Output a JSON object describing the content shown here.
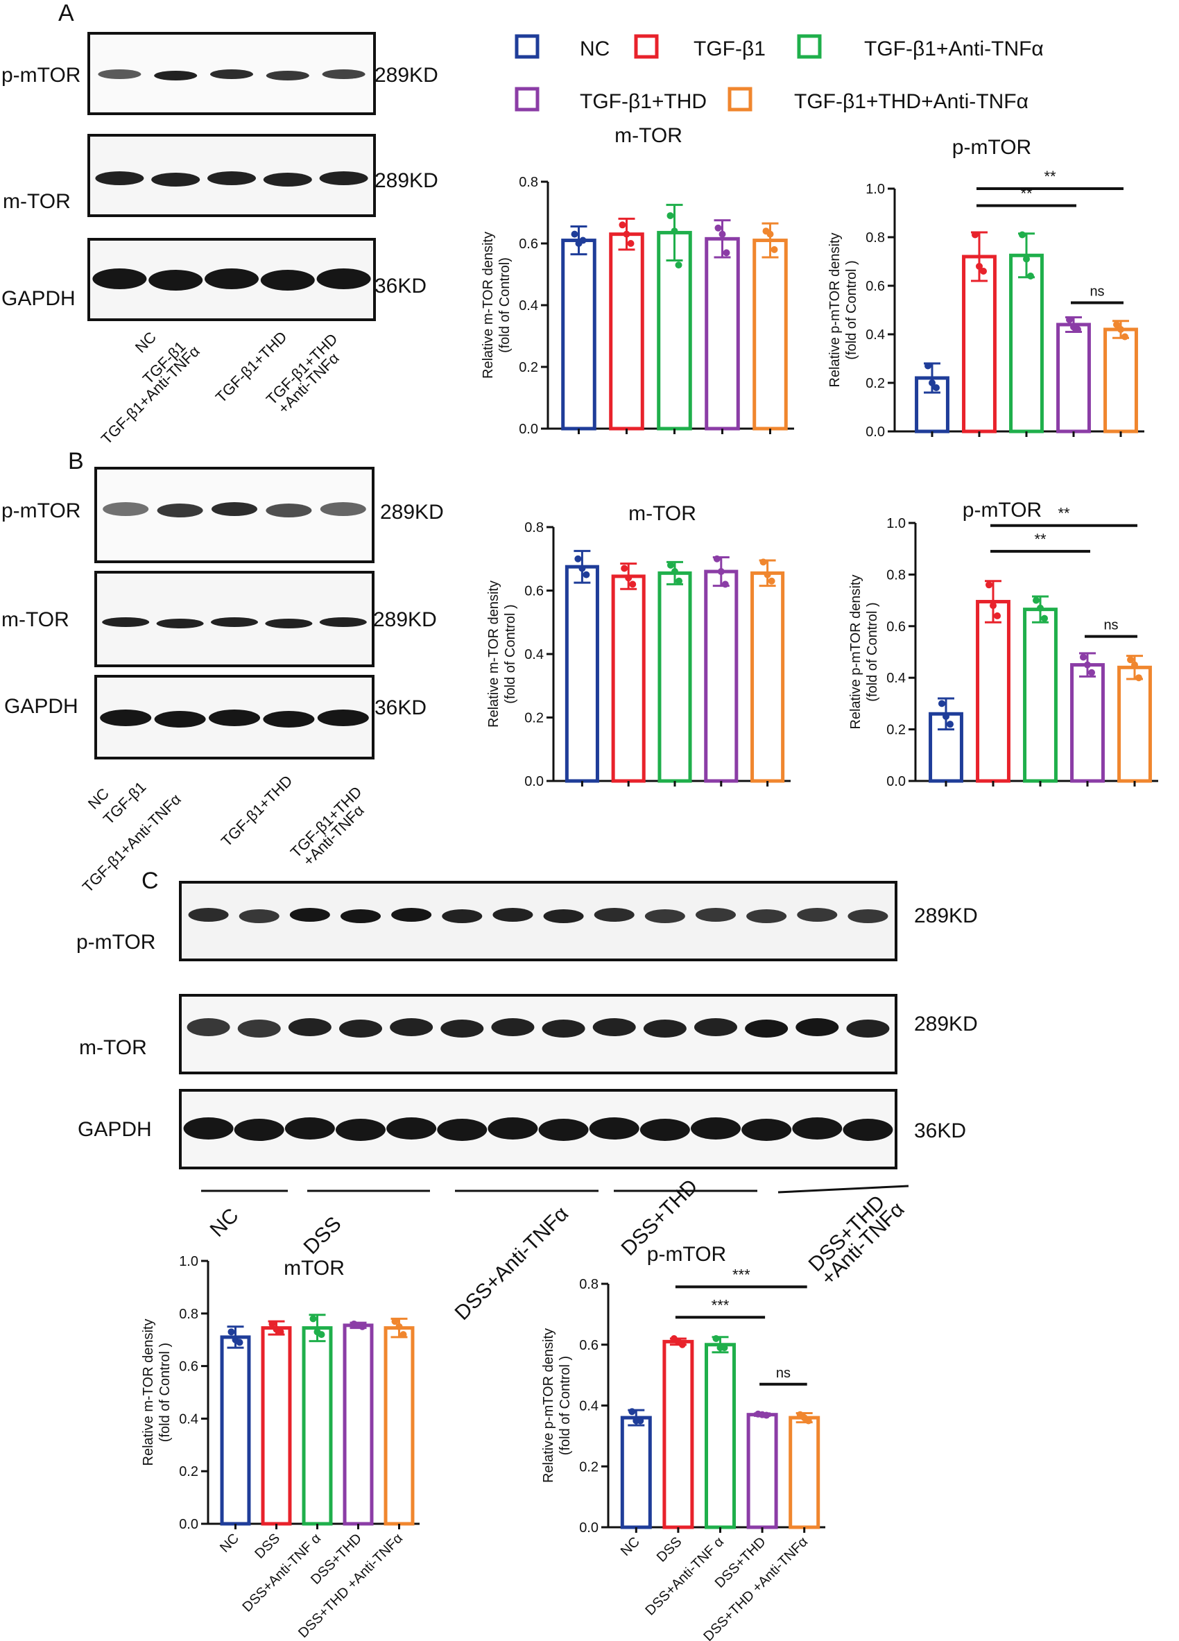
{
  "colors": {
    "NC": "#1f3d99",
    "TGF": "#e8222b",
    "TGF_anti": "#1faf4b",
    "TGF_THD": "#8b3da6",
    "TGF_THD_anti": "#f0862e",
    "band": "#161616",
    "axis": "#111111"
  },
  "panel_letters": [
    "A",
    "B",
    "C"
  ],
  "legend": {
    "entries": [
      "NC",
      "TGF-β1",
      "TGF-β1+Anti-TNFα",
      "TGF-β1+THD",
      "TGF-β1+THD+Anti-TNFα"
    ]
  },
  "blots": {
    "A": {
      "rows": [
        {
          "label": "p-mTOR",
          "kd": "289KD"
        },
        {
          "label": "m-TOR",
          "kd": "289KD"
        },
        {
          "label": "GAPDH",
          "kd": "36KD"
        }
      ],
      "lanes": [
        "NC",
        "TGF-β1",
        "TGF-β1+Anti-TNFα",
        "TGF-β1+THD",
        "TGF-β1+THD",
        "+Anti-TNFα"
      ]
    },
    "B": {
      "rows": [
        {
          "label": "p-mTOR",
          "kd": "289KD"
        },
        {
          "label": "m-TOR",
          "kd": "289KD"
        },
        {
          "label": "GAPDH",
          "kd": "36KD"
        }
      ],
      "lanes": [
        "NC",
        "TGF-β1",
        "TGF-β1+Anti-TNFα",
        "TGF-β1+THD",
        "TGF-β1+THD",
        "+Anti-TNFα"
      ]
    },
    "C": {
      "rows": [
        {
          "label": "p-mTOR",
          "kd": "289KD"
        },
        {
          "label": "m-TOR",
          "kd": "289KD"
        },
        {
          "label": "GAPDH",
          "kd": "36KD"
        }
      ],
      "groups": [
        "NC",
        "DSS",
        "DSS+Anti-TNFα",
        "DSS+THD",
        "DSS+THD",
        "+Anti-TNFα"
      ]
    }
  },
  "chart_data": [
    {
      "id": "A_mTOR",
      "type": "bar",
      "title": "m-TOR",
      "ylabel": [
        "Relative m-TOR density",
        "(fold of Control)"
      ],
      "ylim": [
        0,
        0.8
      ],
      "yticks": [
        "0.0",
        "0.2",
        "0.4",
        "0.6",
        "0.8"
      ],
      "categories": [
        "NC",
        "TGF-β1",
        "TGF-β1+Anti-TNFα",
        "TGF-β1+THD",
        "TGF-β1+THD+Anti-TNFα"
      ],
      "values": [
        0.61,
        0.63,
        0.635,
        0.615,
        0.61
      ],
      "errors": [
        0.045,
        0.05,
        0.09,
        0.06,
        0.055
      ],
      "points": [
        [
          0.63,
          0.6,
          0.61
        ],
        [
          0.66,
          0.63,
          0.6
        ],
        [
          0.69,
          0.64,
          0.53
        ],
        [
          0.65,
          0.63,
          0.57
        ],
        [
          0.64,
          0.63,
          0.58
        ]
      ],
      "sig": []
    },
    {
      "id": "A_pmTOR",
      "type": "bar",
      "title": "p-mTOR",
      "ylabel": [
        "Relative p-mTOR density",
        "(fold of Control )"
      ],
      "ylim": [
        0,
        1.0
      ],
      "yticks": [
        "0.0",
        "0.2",
        "0.4",
        "0.6",
        "0.8",
        "1.0"
      ],
      "categories": [
        "NC",
        "TGF-β1",
        "TGF-β1+Anti-TNFα",
        "TGF-β1+THD",
        "TGF-β1+THD+Anti-TNFα"
      ],
      "values": [
        0.22,
        0.72,
        0.725,
        0.44,
        0.42
      ],
      "errors": [
        0.06,
        0.1,
        0.09,
        0.03,
        0.035
      ],
      "points": [
        [
          0.27,
          0.2,
          0.18
        ],
        [
          0.81,
          0.68,
          0.66
        ],
        [
          0.81,
          0.71,
          0.64
        ],
        [
          0.46,
          0.43,
          0.42
        ],
        [
          0.44,
          0.42,
          0.39
        ]
      ],
      "sig": [
        {
          "from": 1,
          "to": 4,
          "label": "**",
          "level": 1.0
        },
        {
          "from": 1,
          "to": 3,
          "label": "**",
          "level": 0.93
        },
        {
          "from": 3,
          "to": 4,
          "label": "ns",
          "level": 0.53
        }
      ]
    },
    {
      "id": "B_mTOR",
      "type": "bar",
      "title": "m-TOR",
      "ylabel": [
        "Relative m-TOR density",
        "(fold of Control )"
      ],
      "ylim": [
        0,
        0.8
      ],
      "yticks": [
        "0.0",
        "0.2",
        "0.4",
        "0.6",
        "0.8"
      ],
      "categories": [
        "NC",
        "TGF-β1",
        "TGF-β1+Anti-TNFα",
        "TGF-β1+THD",
        "TGF-β1+THD+Anti-TNFα"
      ],
      "values": [
        0.675,
        0.645,
        0.655,
        0.66,
        0.655
      ],
      "errors": [
        0.05,
        0.04,
        0.035,
        0.045,
        0.04
      ],
      "points": [
        [
          0.7,
          0.67,
          0.65
        ],
        [
          0.67,
          0.64,
          0.62
        ],
        [
          0.68,
          0.66,
          0.63
        ],
        [
          0.7,
          0.66,
          0.62
        ],
        [
          0.69,
          0.65,
          0.63
        ]
      ],
      "sig": []
    },
    {
      "id": "B_pmTOR",
      "type": "bar",
      "title": "p-mTOR",
      "ylabel": [
        "Relative p-mTOR density",
        "(fold of Control )"
      ],
      "ylim": [
        0,
        1.0
      ],
      "yticks": [
        "0.0",
        "0.2",
        "0.4",
        "0.6",
        "0.8",
        "1.0"
      ],
      "categories": [
        "NC",
        "TGF-β1",
        "TGF-β1+Anti-TNFα",
        "TGF-β1+THD",
        "TGF-β1+THD+Anti-TNFα"
      ],
      "values": [
        0.26,
        0.695,
        0.665,
        0.45,
        0.44
      ],
      "errors": [
        0.06,
        0.08,
        0.05,
        0.045,
        0.045
      ],
      "points": [
        [
          0.3,
          0.25,
          0.22
        ],
        [
          0.76,
          0.68,
          0.64
        ],
        [
          0.7,
          0.67,
          0.63
        ],
        [
          0.48,
          0.45,
          0.42
        ],
        [
          0.47,
          0.45,
          0.4
        ]
      ],
      "sig": [
        {
          "from": 1,
          "to": 4,
          "label": "**",
          "level": 0.99
        },
        {
          "from": 1,
          "to": 3,
          "label": "**",
          "level": 0.89
        },
        {
          "from": 3,
          "to": 4,
          "label": "ns",
          "level": 0.56
        }
      ]
    },
    {
      "id": "C_mTOR",
      "type": "bar",
      "title": "mTOR",
      "ylabel": [
        "Relative m-TOR density",
        "(fold of Control )"
      ],
      "ylim": [
        0,
        1.0
      ],
      "yticks": [
        "0.0",
        "0.2",
        "0.4",
        "0.6",
        "0.8",
        "1.0"
      ],
      "categories": [
        "NC",
        "DSS",
        "DSS+Anti-TNF α",
        "DSS+THD",
        "DSS+THD +Anti-TNFα"
      ],
      "values": [
        0.71,
        0.745,
        0.745,
        0.755,
        0.745
      ],
      "errors": [
        0.04,
        0.025,
        0.05,
        0.01,
        0.035
      ],
      "points": [
        [
          0.73,
          0.7,
          0.69
        ],
        [
          0.76,
          0.74,
          0.73
        ],
        [
          0.78,
          0.73,
          0.72
        ],
        [
          0.76,
          0.755,
          0.75
        ],
        [
          0.77,
          0.75,
          0.72
        ]
      ],
      "sig": []
    },
    {
      "id": "C_pmTOR",
      "type": "bar",
      "title": "p-mTOR",
      "ylabel": [
        "Relative p-mTOR density",
        "(fold of Control )"
      ],
      "ylim": [
        0,
        0.8
      ],
      "yticks": [
        "0.0",
        "0.2",
        "0.4",
        "0.6",
        "0.8"
      ],
      "categories": [
        "NC",
        "DSS",
        "DSS+Anti-TNF α",
        "DSS+THD",
        "DSS+THD +Anti-TNFα"
      ],
      "values": [
        0.36,
        0.61,
        0.6,
        0.37,
        0.36
      ],
      "errors": [
        0.025,
        0.01,
        0.025,
        0.004,
        0.015
      ],
      "points": [
        [
          0.38,
          0.35,
          0.35
        ],
        [
          0.62,
          0.61,
          0.6
        ],
        [
          0.62,
          0.59,
          0.59
        ],
        [
          0.372,
          0.37,
          0.368
        ],
        [
          0.37,
          0.36,
          0.35
        ]
      ],
      "sig": [
        {
          "from": 1,
          "to": 4,
          "label": "***",
          "level": 0.79
        },
        {
          "from": 1,
          "to": 3,
          "label": "***",
          "level": 0.69
        },
        {
          "from": 3,
          "to": 4,
          "label": "ns",
          "level": 0.47
        }
      ]
    }
  ]
}
